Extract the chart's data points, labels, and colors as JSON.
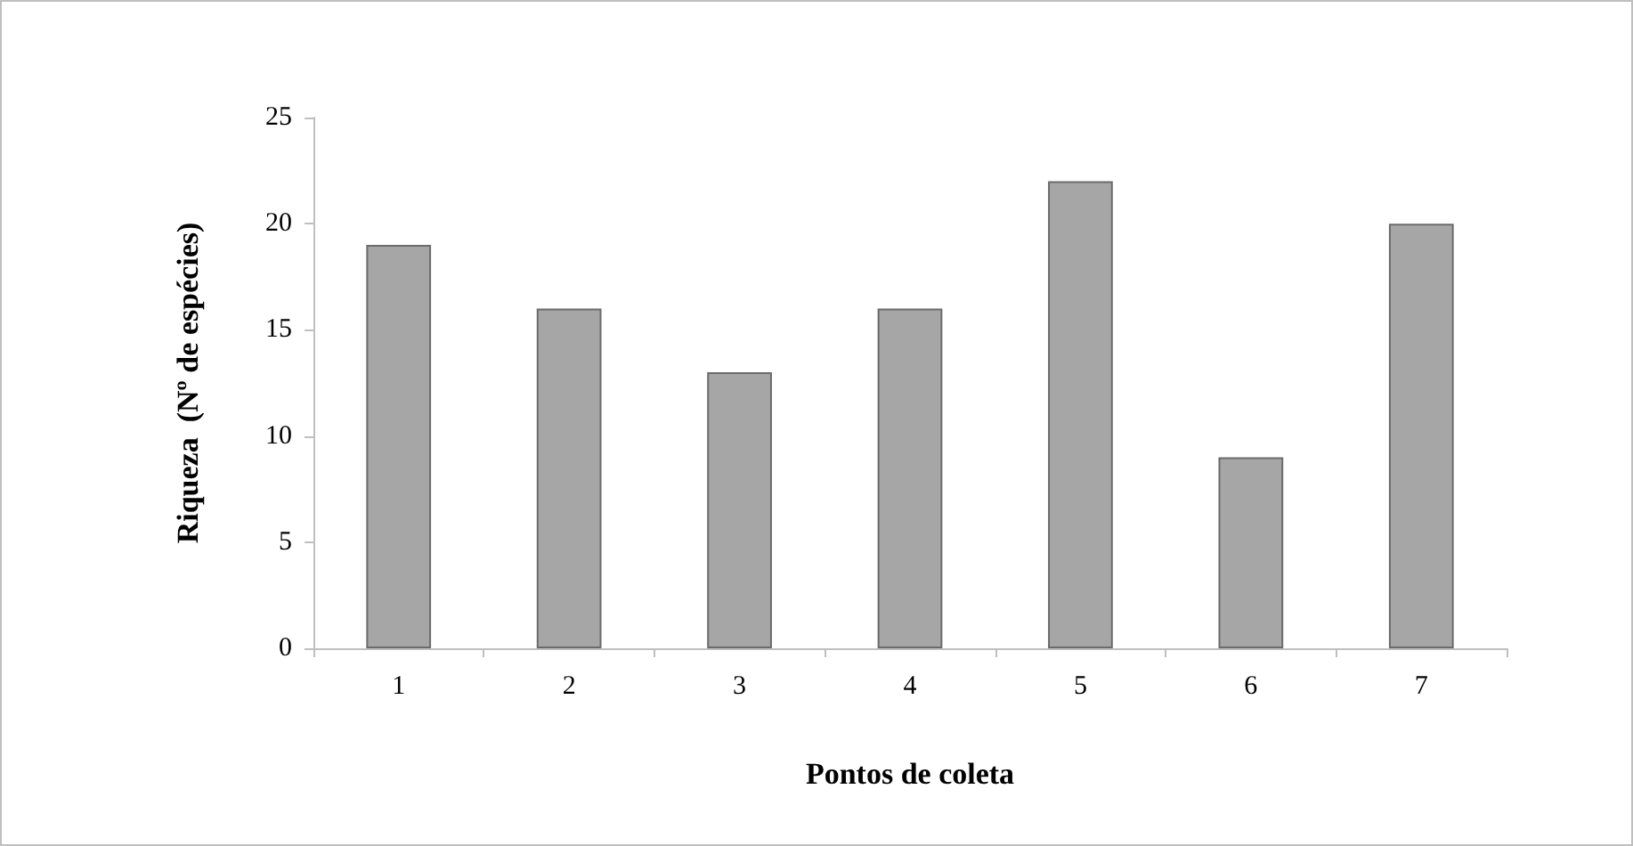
{
  "chart_data": {
    "type": "bar",
    "xlabel": "Pontos de coleta",
    "ylabel": "Riqueza  (Nº de espécies)",
    "categories": [
      "1",
      "2",
      "3",
      "4",
      "5",
      "6",
      "7"
    ],
    "values": [
      19,
      16,
      13,
      16,
      22,
      9,
      20
    ],
    "color": "#a6a6a6",
    "ylim": [
      0,
      25
    ],
    "yticks": [
      0,
      5,
      10,
      15,
      20,
      25
    ],
    "grid": false
  }
}
